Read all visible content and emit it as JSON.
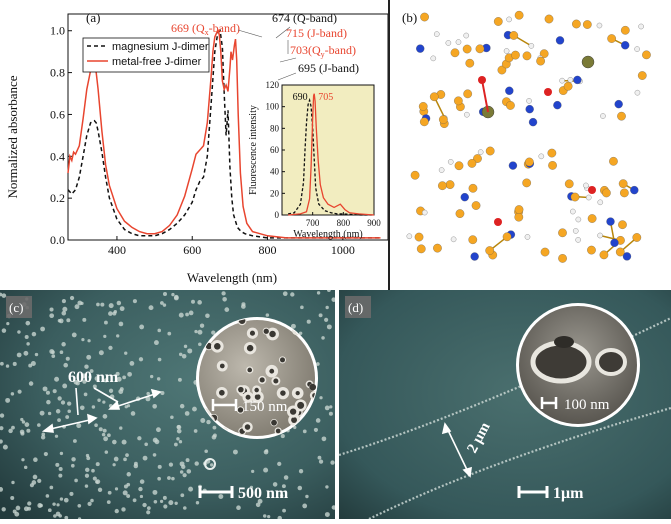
{
  "figure": {
    "panel_labels": {
      "a": "(a)",
      "b": "(b)",
      "c": "(c)",
      "d": "(d)"
    }
  },
  "chart_data": [
    {
      "type": "line",
      "xlabel": "Wavelength (nm)",
      "ylabel": "Normalized absorbance",
      "xlim": [
        270,
        1120
      ],
      "ylim": [
        0.0,
        1.08
      ],
      "x_ticks": [
        400,
        600,
        800,
        1000
      ],
      "y_ticks": [
        0.0,
        0.2,
        0.4,
        0.6,
        0.8,
        1.0
      ],
      "x_tick_labels": [
        "400",
        "600",
        "800",
        "1000"
      ],
      "y_tick_labels": [
        "0.0",
        "0.2",
        "0.4",
        "0.6",
        "0.8",
        "1.0"
      ],
      "legend_position": "top-left",
      "series": [
        {
          "name": "magnesium J-dimer",
          "color": "#111111",
          "dash": true,
          "x": [
            270,
            280,
            290,
            300,
            310,
            320,
            330,
            340,
            345,
            350,
            360,
            370,
            380,
            400,
            420,
            440,
            460,
            480,
            500,
            520,
            540,
            560,
            580,
            600,
            610,
            620,
            630,
            640,
            650,
            660,
            668,
            674,
            680,
            685,
            690,
            695,
            700,
            705,
            710,
            720,
            730,
            740,
            760,
            800,
            900,
            1000,
            1100
          ],
          "y": [
            0.24,
            0.22,
            0.24,
            0.3,
            0.4,
            0.5,
            0.56,
            0.57,
            0.56,
            0.52,
            0.42,
            0.3,
            0.2,
            0.1,
            0.05,
            0.03,
            0.02,
            0.02,
            0.02,
            0.03,
            0.05,
            0.08,
            0.12,
            0.18,
            0.24,
            0.28,
            0.3,
            0.4,
            0.65,
            0.9,
            0.99,
            1.0,
            0.92,
            0.7,
            0.5,
            0.62,
            0.35,
            0.2,
            0.12,
            0.06,
            0.04,
            0.03,
            0.02,
            0.01,
            0.01,
            0.01,
            0.01
          ]
        },
        {
          "name": "metal-free J-dimer",
          "color": "#e8452f",
          "dash": false,
          "x": [
            270,
            275,
            280,
            285,
            290,
            300,
            310,
            320,
            330,
            340,
            345,
            350,
            360,
            370,
            380,
            400,
            420,
            440,
            460,
            480,
            500,
            520,
            540,
            560,
            580,
            600,
            610,
            620,
            630,
            640,
            650,
            655,
            660,
            665,
            669,
            672,
            676,
            680,
            685,
            690,
            695,
            700,
            703,
            707,
            712,
            715,
            718,
            722,
            728,
            735,
            745,
            760,
            800,
            850,
            900,
            1000,
            1100
          ],
          "y": [
            0.32,
            0.4,
            0.38,
            0.42,
            0.41,
            0.45,
            0.58,
            0.72,
            0.81,
            0.82,
            0.8,
            0.72,
            0.52,
            0.36,
            0.26,
            0.15,
            0.09,
            0.06,
            0.04,
            0.03,
            0.03,
            0.04,
            0.07,
            0.12,
            0.21,
            0.34,
            0.41,
            0.43,
            0.45,
            0.56,
            0.78,
            0.9,
            0.97,
            0.99,
            1.0,
            0.98,
            0.9,
            0.76,
            0.72,
            0.74,
            0.71,
            0.82,
            0.9,
            0.86,
            0.93,
            0.96,
            0.86,
            0.6,
            0.32,
            0.16,
            0.08,
            0.04,
            0.02,
            0.01,
            0.01,
            0.01,
            0.01
          ]
        }
      ],
      "annotations": [
        {
          "text": "669 (Q",
          "sub": "x",
          "tail": "-band)",
          "color": "#e8452f"
        },
        {
          "text": "674 (Q-band)",
          "sub": "",
          "tail": "",
          "color": "#111111"
        },
        {
          "text": "715 (J-band)",
          "sub": "",
          "tail": "",
          "color": "#e8452f"
        },
        {
          "text": "703(Q",
          "sub": "y",
          "tail": "-band)",
          "color": "#e8452f"
        },
        {
          "text": "695 (J-band)",
          "sub": "",
          "tail": "",
          "color": "#111111"
        }
      ]
    },
    {
      "type": "line",
      "inset": true,
      "xlabel": "Wavelength (nm)",
      "ylabel": "Fluorescence intensity",
      "xlim": [
        600,
        900
      ],
      "ylim": [
        0,
        120
      ],
      "x_ticks": [
        700,
        800,
        900
      ],
      "y_ticks": [
        0,
        20,
        40,
        60,
        80,
        100,
        120
      ],
      "x_tick_labels": [
        "700",
        "800",
        "900"
      ],
      "y_tick_labels": [
        "0",
        "20",
        "40",
        "60",
        "80",
        "100",
        "120"
      ],
      "background": "#f2edc0",
      "series": [
        {
          "name": "",
          "color": "#111111",
          "dash": true,
          "x": [
            620,
            640,
            660,
            670,
            675,
            680,
            685,
            690,
            695,
            700,
            705,
            710,
            720,
            740,
            760,
            780,
            800,
            850,
            900
          ],
          "y": [
            1,
            2,
            10,
            30,
            60,
            85,
            102,
            106,
            100,
            80,
            52,
            25,
            10,
            4,
            2,
            1,
            1,
            0,
            0
          ]
        },
        {
          "name": "",
          "color": "#e8452f",
          "dash": false,
          "x": [
            620,
            660,
            680,
            690,
            695,
            700,
            703,
            705,
            708,
            712,
            718,
            725,
            735,
            750,
            770,
            790,
            805,
            820,
            850,
            900
          ],
          "y": [
            0,
            1,
            3,
            15,
            45,
            90,
            110,
            112,
            105,
            80,
            50,
            28,
            16,
            10,
            7,
            10,
            5,
            2,
            1,
            0
          ]
        }
      ],
      "annotations": [
        {
          "text": "690",
          "color": "#111111"
        },
        {
          "text": "705",
          "color": "#e8452f"
        }
      ]
    }
  ],
  "panel_c": {
    "scale_large": "500 nm",
    "scale_inset": "150 nm",
    "spacing_label": "600 nm"
  },
  "panel_d": {
    "scale_large": "1μm",
    "scale_inset": "100 nm",
    "spacing_label": "2 μm"
  }
}
